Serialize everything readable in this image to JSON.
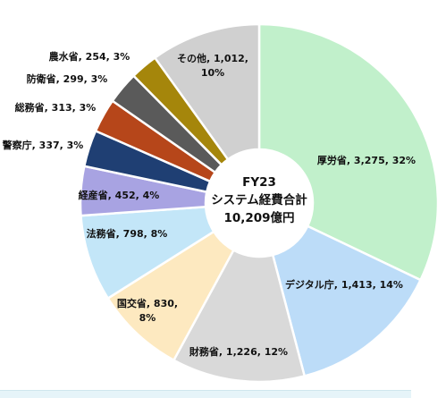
{
  "chart_data": {
    "type": "pie",
    "variant": "donut",
    "center_text": [
      "FY23",
      "システム経費合計",
      "10,209億円"
    ],
    "total": 10209,
    "slices": [
      {
        "category": "厚労省",
        "value": 3275,
        "percent": 32,
        "label_lines": [
          "厚労省, 3,275, 32%"
        ],
        "color": "#c1f0cb"
      },
      {
        "category": "デジタル庁",
        "value": 1413,
        "percent": 14,
        "label_lines": [
          "デジタル庁, 1,413, 14%"
        ],
        "color": "#bcdcf8"
      },
      {
        "category": "財務省",
        "value": 1226,
        "percent": 12,
        "label_lines": [
          "財務省, 1,226, 12%"
        ],
        "color": "#d9d9d9"
      },
      {
        "category": "国交省",
        "value": 830,
        "percent": 8,
        "label_lines": [
          "国交省, 830,",
          "8%"
        ],
        "color": "#fde9c0"
      },
      {
        "category": "法務省",
        "value": 798,
        "percent": 8,
        "label_lines": [
          "法務省, 798, 8%"
        ],
        "color": "#c3e6f8"
      },
      {
        "category": "経産省",
        "value": 452,
        "percent": 4,
        "label_lines": [
          "経産省, 452, 4%"
        ],
        "color": "#a8a3e2"
      },
      {
        "category": "警察庁",
        "value": 337,
        "percent": 3,
        "label_lines": [
          "警察庁, 337, 3%"
        ],
        "color": "#1f3f73"
      },
      {
        "category": "総務省",
        "value": 313,
        "percent": 3,
        "label_lines": [
          "総務省, 313, 3%"
        ],
        "color": "#b6461a"
      },
      {
        "category": "防衛省",
        "value": 299,
        "percent": 3,
        "label_lines": [
          "防衛省, 299, 3%"
        ],
        "color": "#5a5a5a"
      },
      {
        "category": "農水省",
        "value": 254,
        "percent": 3,
        "label_lines": [
          "農水省, 254, 3%"
        ],
        "color": "#a5860b"
      },
      {
        "category": "その他",
        "value": 1012,
        "percent": 10,
        "label_lines": [
          "その他, 1,012,",
          "10%"
        ],
        "color": "#d0d0d0"
      }
    ]
  }
}
